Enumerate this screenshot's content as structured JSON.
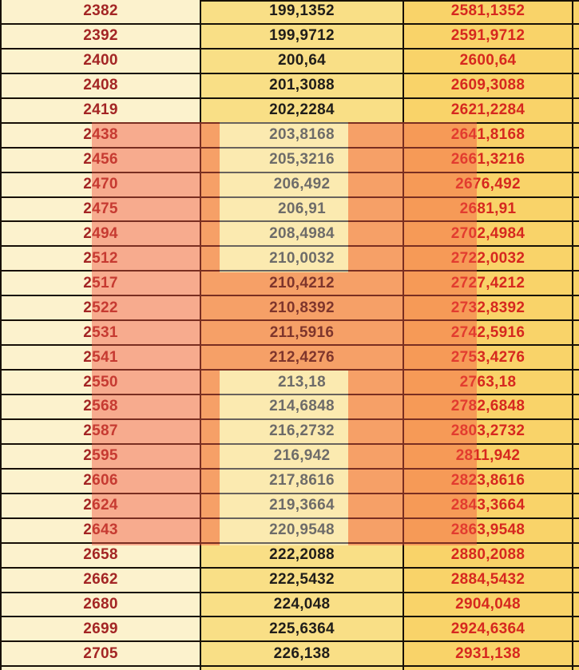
{
  "table": {
    "row_count": 27,
    "columns": [
      {
        "name": "base-value",
        "text_color": "#a32524",
        "background": "#fcf2cd"
      },
      {
        "name": "increment-value",
        "text_color": "#201d1a",
        "background": "#f9df86"
      },
      {
        "name": "total-value",
        "text_color": "#d6281f",
        "background": "#f9d369"
      }
    ],
    "rows": [
      [
        "2382",
        "199,1352",
        "2581,1352"
      ],
      [
        "2392",
        "199,9712",
        "2591,9712"
      ],
      [
        "2400",
        "200,64",
        "2600,64"
      ],
      [
        "2408",
        "201,3088",
        "2609,3088"
      ],
      [
        "2419",
        "202,2284",
        "2621,2284"
      ],
      [
        "2438",
        "203,8168",
        "2641,8168"
      ],
      [
        "2456",
        "205,3216",
        "2661,3216"
      ],
      [
        "2470",
        "206,492",
        "2676,492"
      ],
      [
        "2475",
        "206,91",
        "2681,91"
      ],
      [
        "2494",
        "208,4984",
        "2702,4984"
      ],
      [
        "2512",
        "210,0032",
        "2722,0032"
      ],
      [
        "2517",
        "210,4212",
        "2727,4212"
      ],
      [
        "2522",
        "210,8392",
        "2732,8392"
      ],
      [
        "2531",
        "211,5916",
        "2742,5916"
      ],
      [
        "2541",
        "212,4276",
        "2753,4276"
      ],
      [
        "2550",
        "213,18",
        "2763,18"
      ],
      [
        "2568",
        "214,6848",
        "2782,6848"
      ],
      [
        "2587",
        "216,2732",
        "2803,2732"
      ],
      [
        "2595",
        "216,942",
        "2811,942"
      ],
      [
        "2606",
        "217,8616",
        "2823,8616"
      ],
      [
        "2624",
        "219,3664",
        "2843,3664"
      ],
      [
        "2643",
        "220,9548",
        "2863,9548"
      ],
      [
        "2658",
        "222,2088",
        "2880,2088"
      ],
      [
        "2662",
        "222,5432",
        "2884,5432"
      ],
      [
        "2680",
        "224,048",
        "2904,048"
      ],
      [
        "2699",
        "225,6364",
        "2924,6364"
      ],
      [
        "2705",
        "226,138",
        "2931,138"
      ]
    ]
  },
  "annotations": {
    "grid_line_color": "#171007",
    "highlight_color": "rgba(242,85,66,0.45)",
    "inset_highlight_color": "rgba(255,255,255,0.35)",
    "highlighted_rows_first": "2438",
    "highlighted_rows_last": "2643",
    "inset_window_top_rows": "2438–2512",
    "inset_window_bottom_rows": "2550–2643"
  }
}
